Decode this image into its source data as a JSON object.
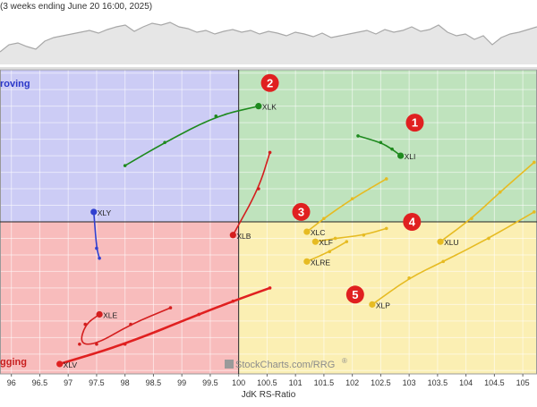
{
  "header": {
    "period_text": "(3 weeks ending June 20 16:00, 2025)"
  },
  "chart_data": {
    "type": "scatter",
    "subtype": "relative-rotation-graph",
    "xlabel": "JdK RS-Ratio",
    "ylabel": "",
    "xlim": [
      95.8,
      105.25
    ],
    "ylim": [
      95.4,
      104.6
    ],
    "x_ticks": [
      "96",
      "96.5",
      "97",
      "97.5",
      "98",
      "98.5",
      "99",
      "99.5",
      "100",
      "100.5",
      "101",
      "101.5",
      "102",
      "102.5",
      "103",
      "103.5",
      "104",
      "104.5",
      "105"
    ],
    "grid": true,
    "quadrants": [
      {
        "name": "Improving",
        "label": "roving",
        "color": "#ccccf5",
        "label_color": "#2a37c8"
      },
      {
        "name": "Leading",
        "label": "",
        "color": "#bfe3bd",
        "label_color": "#2a8a2a"
      },
      {
        "name": "Lagging",
        "label": "gging",
        "color": "#f8bcbc",
        "label_color": "#c81e1e"
      },
      {
        "name": "Weakening",
        "label": "",
        "color": "#fbefb3",
        "label_color": "#c8a000"
      }
    ],
    "series": [
      {
        "name": "XLK",
        "color": "#1e8a1e",
        "x": [
          98.0,
          98.7,
          99.6,
          100.35
        ],
        "y": [
          101.7,
          102.4,
          103.2,
          103.5
        ]
      },
      {
        "name": "XLY",
        "color": "#3040d0",
        "x": [
          97.55,
          97.5,
          97.45
        ],
        "y": [
          98.9,
          99.2,
          100.3
        ]
      },
      {
        "name": "XLB",
        "color": "#d41e1e",
        "x": [
          100.55,
          100.35,
          99.9
        ],
        "y": [
          102.1,
          101.0,
          99.6
        ]
      },
      {
        "name": "XLI",
        "color": "#1e8a1e",
        "x": [
          102.1,
          102.5,
          102.7,
          102.85
        ],
        "y": [
          102.6,
          102.4,
          102.2,
          102.0
        ]
      },
      {
        "name": "XLE",
        "color": "#d41e1e",
        "x": [
          98.8,
          98.1,
          97.5,
          97.2,
          97.3,
          97.55
        ],
        "y": [
          97.4,
          96.9,
          96.3,
          96.3,
          96.9,
          97.2
        ]
      },
      {
        "name": "XLV",
        "color": "#e02020",
        "x": [
          100.55,
          99.9,
          99.3,
          98.0,
          96.85
        ],
        "y": [
          98.0,
          97.6,
          97.2,
          96.3,
          95.7
        ]
      },
      {
        "name": "XLC",
        "color": "#e6bb22",
        "x": [
          102.6,
          102.0,
          101.5,
          101.2
        ],
        "y": [
          101.3,
          100.7,
          100.1,
          99.7
        ]
      },
      {
        "name": "XLF",
        "color": "#e6bb22",
        "x": [
          102.6,
          102.2,
          101.7,
          101.35
        ],
        "y": [
          99.8,
          99.6,
          99.5,
          99.4
        ]
      },
      {
        "name": "XLRE",
        "color": "#e6bb22",
        "x": [
          101.9,
          101.6,
          101.2
        ],
        "y": [
          99.4,
          99.1,
          98.8
        ]
      },
      {
        "name": "XLU",
        "color": "#e6bb22",
        "x": [
          105.2,
          104.6,
          104.1,
          103.55
        ],
        "y": [
          101.8,
          100.9,
          100.1,
          99.4
        ]
      },
      {
        "name": "XLP",
        "color": "#e6bb22",
        "x": [
          105.2,
          104.4,
          103.6,
          103.0,
          102.35
        ],
        "y": [
          100.3,
          99.5,
          98.8,
          98.3,
          97.5
        ]
      }
    ],
    "annotations": [
      {
        "label": "1",
        "x": 103.1,
        "y": 103.0,
        "color": "#e02020"
      },
      {
        "label": "2",
        "x": 100.55,
        "y": 104.2,
        "color": "#e02020"
      },
      {
        "label": "3",
        "x": 101.1,
        "y": 100.3,
        "color": "#e02020"
      },
      {
        "label": "4",
        "x": 103.05,
        "y": 100.0,
        "color": "#e02020"
      },
      {
        "label": "5",
        "x": 102.05,
        "y": 97.8,
        "color": "#e02020"
      }
    ],
    "watermark": "StockCharts.com/RRG",
    "watermark_mark": "®"
  }
}
